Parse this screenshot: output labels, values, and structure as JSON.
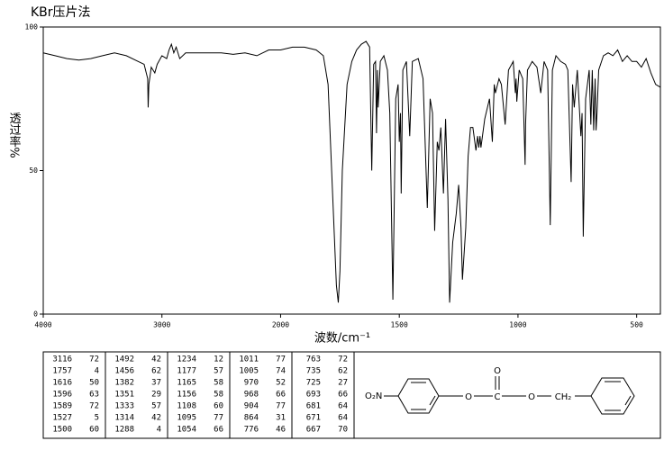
{
  "chart_data": {
    "type": "line",
    "title": "KBr压片法",
    "ylabel": "透过率%",
    "xlabel": "波数/cm⁻¹",
    "xlim": [
      4000,
      400
    ],
    "xscale_break": 2000,
    "xticks": [
      4000,
      3000,
      2000,
      1500,
      1000,
      500
    ],
    "ylim": [
      0,
      100
    ],
    "yticks": [
      0,
      50,
      100
    ],
    "color": "#000000",
    "x": [
      4000,
      3900,
      3800,
      3700,
      3600,
      3500,
      3400,
      3300,
      3200,
      3150,
      3120,
      3116,
      3110,
      3090,
      3060,
      3040,
      3000,
      2960,
      2940,
      2920,
      2900,
      2880,
      2850,
      2800,
      2700,
      2600,
      2500,
      2400,
      2300,
      2200,
      2100,
      2000,
      1950,
      1900,
      1850,
      1820,
      1800,
      1780,
      1765,
      1757,
      1750,
      1740,
      1720,
      1700,
      1680,
      1660,
      1640,
      1625,
      1616,
      1608,
      1600,
      1596,
      1592,
      1589,
      1580,
      1565,
      1550,
      1540,
      1527,
      1515,
      1505,
      1500,
      1495,
      1492,
      1485,
      1470,
      1456,
      1445,
      1420,
      1400,
      1382,
      1370,
      1360,
      1351,
      1340,
      1333,
      1325,
      1314,
      1305,
      1295,
      1288,
      1275,
      1260,
      1250,
      1240,
      1234,
      1220,
      1210,
      1200,
      1190,
      1177,
      1170,
      1165,
      1160,
      1156,
      1140,
      1120,
      1108,
      1100,
      1095,
      1080,
      1070,
      1054,
      1040,
      1020,
      1011,
      1008,
      1005,
      995,
      980,
      970,
      968,
      960,
      940,
      920,
      904,
      890,
      875,
      864,
      855,
      840,
      820,
      800,
      790,
      776,
      770,
      763,
      750,
      735,
      730,
      725,
      715,
      700,
      693,
      687,
      681,
      675,
      671,
      667,
      660,
      640,
      620,
      600,
      580,
      560,
      550,
      540,
      520,
      500,
      480,
      460,
      440,
      420,
      400
    ],
    "values": [
      91,
      90,
      89,
      88.5,
      89,
      90,
      91,
      90,
      88,
      87,
      82,
      72,
      80,
      86,
      84,
      87,
      90,
      89,
      92,
      94,
      91,
      93,
      89,
      91,
      91,
      91,
      91,
      90.5,
      91,
      90,
      92,
      92,
      93,
      93,
      92,
      90,
      80,
      40,
      10,
      4,
      15,
      50,
      80,
      88,
      92,
      94,
      95,
      93,
      50,
      87,
      88,
      63,
      85,
      72,
      88,
      90,
      85,
      70,
      5,
      75,
      80,
      60,
      70,
      42,
      85,
      88,
      62,
      88,
      89,
      82,
      37,
      75,
      70,
      29,
      60,
      57,
      65,
      42,
      68,
      40,
      4,
      25,
      35,
      45,
      30,
      12,
      30,
      55,
      65,
      65,
      57,
      62,
      58,
      62,
      58,
      68,
      75,
      60,
      80,
      77,
      82,
      80,
      66,
      85,
      88,
      77,
      82,
      74,
      85,
      82,
      52,
      66,
      85,
      88,
      86,
      77,
      88,
      85,
      31,
      85,
      90,
      88,
      87,
      85,
      46,
      80,
      72,
      85,
      62,
      70,
      27,
      75,
      85,
      66,
      85,
      64,
      82,
      64,
      70,
      85,
      90,
      91,
      90,
      92,
      88,
      89,
      90,
      88,
      88,
      86,
      89,
      84,
      80,
      79
    ]
  },
  "peak_table": {
    "columns": [
      [
        [
          "3116",
          "72"
        ],
        [
          "1757",
          "4"
        ],
        [
          "1616",
          "50"
        ],
        [
          "1596",
          "63"
        ],
        [
          "1589",
          "72"
        ],
        [
          "1527",
          "5"
        ],
        [
          "1500",
          "60"
        ]
      ],
      [
        [
          "1492",
          "42"
        ],
        [
          "1456",
          "62"
        ],
        [
          "1382",
          "37"
        ],
        [
          "1351",
          "29"
        ],
        [
          "1333",
          "57"
        ],
        [
          "1314",
          "42"
        ],
        [
          "1288",
          "4"
        ]
      ],
      [
        [
          "1234",
          "12"
        ],
        [
          "1177",
          "57"
        ],
        [
          "1165",
          "58"
        ],
        [
          "1156",
          "58"
        ],
        [
          "1108",
          "60"
        ],
        [
          "1095",
          "77"
        ],
        [
          "1054",
          "66"
        ]
      ],
      [
        [
          "1011",
          "77"
        ],
        [
          "1005",
          "74"
        ],
        [
          "970",
          "52"
        ],
        [
          "968",
          "66"
        ],
        [
          "904",
          "77"
        ],
        [
          "864",
          "31"
        ],
        [
          "776",
          "46"
        ]
      ],
      [
        [
          "763",
          "72"
        ],
        [
          "735",
          "62"
        ],
        [
          "725",
          "27"
        ],
        [
          "693",
          "66"
        ],
        [
          "681",
          "64"
        ],
        [
          "671",
          "64"
        ],
        [
          "667",
          "70"
        ]
      ]
    ]
  },
  "structure": {
    "labels": [
      "O₂N",
      "O",
      "C",
      "O",
      "O",
      "CH₂"
    ]
  }
}
